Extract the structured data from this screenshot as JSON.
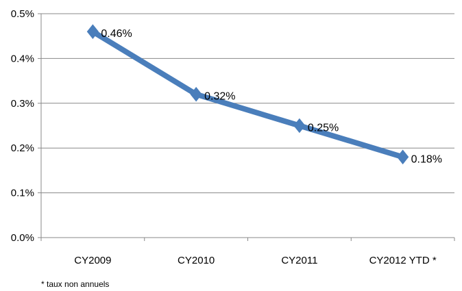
{
  "chart_data": {
    "type": "line",
    "categories": [
      "CY2009",
      "CY2010",
      "CY2011",
      "CY2012 YTD *"
    ],
    "values": [
      0.46,
      0.32,
      0.25,
      0.18
    ],
    "data_labels": [
      "0.46%",
      "0.32%",
      "0.25%",
      "0.18%"
    ],
    "ylim": [
      0,
      0.5
    ],
    "yticks": [
      0.0,
      0.1,
      0.2,
      0.3,
      0.4,
      0.5
    ],
    "ytick_labels": [
      "0.0%",
      "0.1%",
      "0.2%",
      "0.3%",
      "0.4%",
      "0.5%"
    ],
    "grid": true,
    "legend": "none",
    "line_color": "#4a7ebb",
    "grid_color": "#888888",
    "marker": "diamond"
  },
  "footnote": "* taux non annuels"
}
